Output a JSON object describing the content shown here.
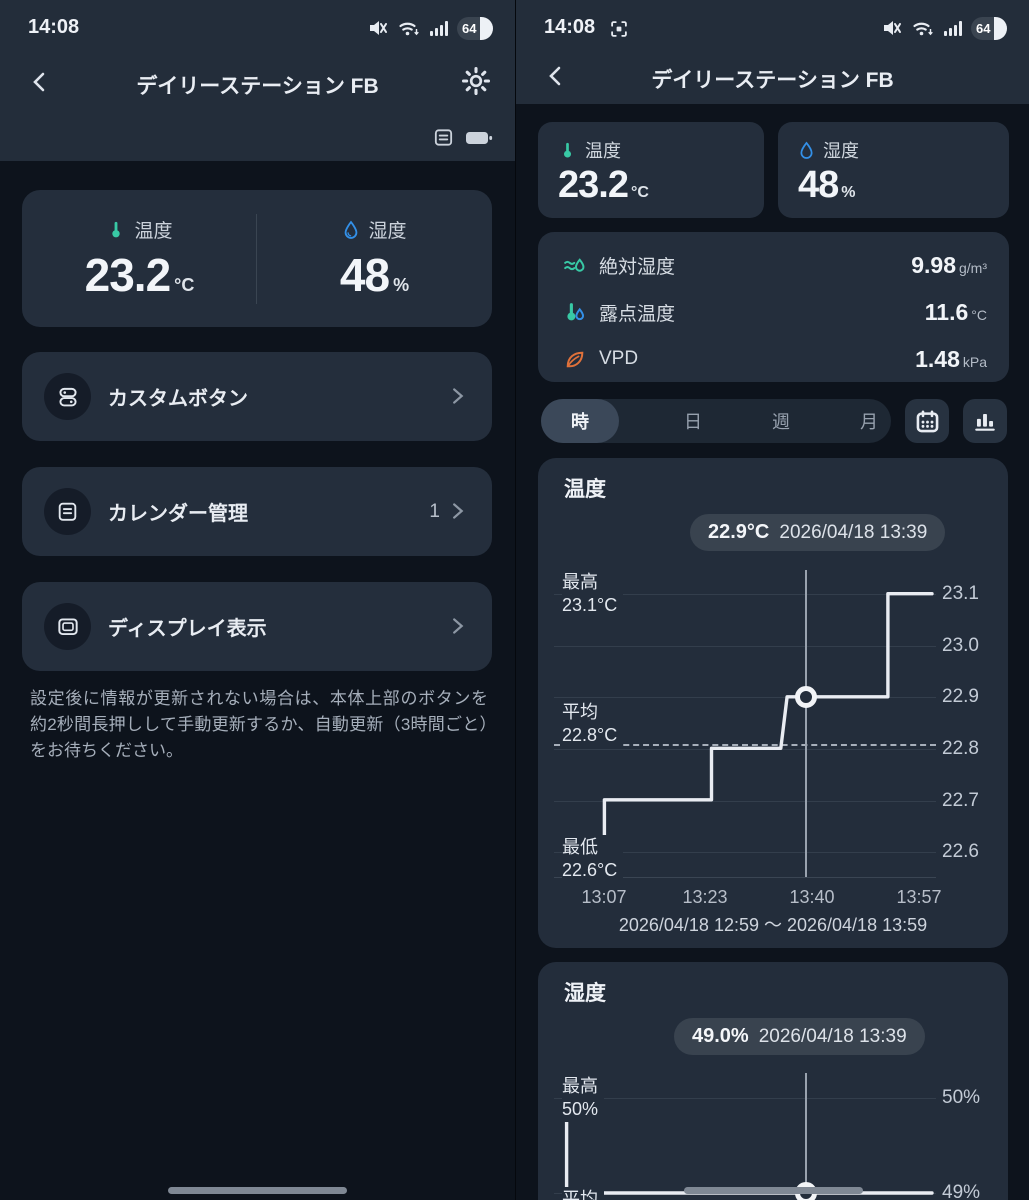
{
  "status": {
    "time": "14:08",
    "battery_pct": "64"
  },
  "app": {
    "title": "デイリーステーション FB"
  },
  "left": {
    "summary": {
      "temp_label": "温度",
      "temp_value": "23.2",
      "temp_unit": "°C",
      "hum_label": "湿度",
      "hum_value": "48",
      "hum_unit": "%"
    },
    "menu": [
      {
        "label": "カスタムボタン",
        "badge": ""
      },
      {
        "label": "カレンダー管理",
        "badge": "1"
      },
      {
        "label": "ディスプレイ表示",
        "badge": ""
      }
    ],
    "note": "設定後に情報が更新されない場合は、本体上部のボタンを約2秒間長押しして手動更新するか、自動更新（3時間ごと）をお待ちください。"
  },
  "right": {
    "temp_card": {
      "label": "温度",
      "value": "23.2",
      "unit": "°C"
    },
    "hum_card": {
      "label": "湿度",
      "value": "48",
      "unit": "%"
    },
    "metrics": [
      {
        "label": "絶対湿度",
        "value": "9.98",
        "unit": "g/m³"
      },
      {
        "label": "露点温度",
        "value": "11.6",
        "unit": "°C"
      },
      {
        "label": "VPD",
        "value": "1.48",
        "unit": "kPa"
      }
    ],
    "tabs": {
      "hour": "時",
      "day": "日",
      "week": "週",
      "month": "月"
    }
  },
  "colors": {
    "accent_teal": "#38c9a5",
    "accent_blue": "#3390e8",
    "accent_orange": "#e0713a",
    "card": "#242e3c",
    "background": "#0d131c"
  },
  "chart_data": [
    {
      "type": "line",
      "title": "温度",
      "unit": "°C",
      "tooltip": {
        "value": "22.9°C",
        "datetime": "2026/04/18 13:39"
      },
      "y_ticks": [
        "23.1",
        "23.0",
        "22.9",
        "22.8",
        "22.7",
        "22.6"
      ],
      "x_ticks": [
        "13:07",
        "13:23",
        "13:40",
        "13:57"
      ],
      "x_range_label": "2026/04/18 12:59 ～ 2026/04/18 13:59",
      "stats": {
        "max_label": "最高",
        "max_value": "23.1°C",
        "avg_label": "平均",
        "avg_value": "22.8°C",
        "min_label": "最低",
        "min_value": "22.6°C"
      },
      "average": 22.8,
      "x_unit": "minutes after 12:59",
      "points": [
        [
          8,
          22.63
        ],
        [
          8,
          22.7
        ],
        [
          25,
          22.7
        ],
        [
          25,
          22.8
        ],
        [
          36,
          22.8
        ],
        [
          37,
          22.9
        ],
        [
          53,
          22.9
        ],
        [
          53,
          23.1
        ],
        [
          60,
          23.1
        ]
      ],
      "cursor": {
        "minute": 40,
        "value": 22.9
      }
    },
    {
      "type": "line",
      "title": "湿度",
      "unit": "%",
      "tooltip": {
        "value": "49.0%",
        "datetime": "2026/04/18 13:39"
      },
      "y_ticks": [
        "50%",
        "49%"
      ],
      "stats": {
        "max_label": "最高",
        "max_value": "50%",
        "avg_label": "平均"
      },
      "x_unit": "minutes after 12:59",
      "points": [
        [
          2,
          50
        ],
        [
          2,
          49
        ],
        [
          60,
          49
        ]
      ],
      "cursor": {
        "minute": 40,
        "value": 49
      }
    }
  ]
}
